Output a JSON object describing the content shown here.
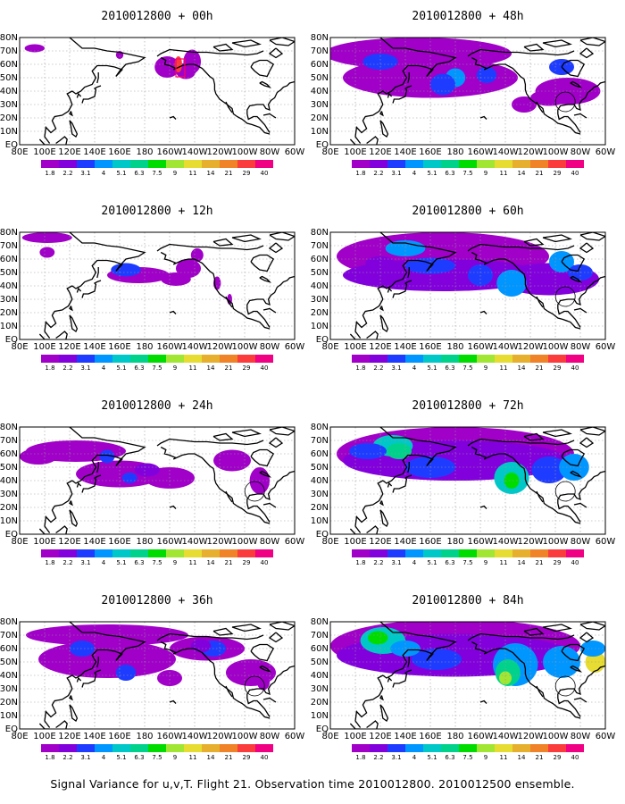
{
  "caption": "Signal Variance for u,v,T. Flight 21. Observation time 2010012800. 2010012500 ensemble.",
  "lon_ticks": [
    "80E",
    "100E",
    "120E",
    "140E",
    "160E",
    "180",
    "160W",
    "140W",
    "120W",
    "100W",
    "80W",
    "60W"
  ],
  "lat_ticks": [
    "EQ",
    "10N",
    "20N",
    "30N",
    "40N",
    "50N",
    "60N",
    "70N",
    "80N"
  ],
  "colorbar": {
    "labels": [
      "1.8",
      "2.2",
      "3.1",
      "4",
      "5.1",
      "6.3",
      "7.5",
      "9",
      "11",
      "14",
      "21",
      "29",
      "40"
    ],
    "colors": [
      "#a000c8",
      "#8200dc",
      "#1e3cff",
      "#0096ff",
      "#00c8c8",
      "#00d28c",
      "#00dc00",
      "#a0e632",
      "#e6dc32",
      "#e6af2d",
      "#f08228",
      "#fa3c3c",
      "#f00082"
    ]
  },
  "panels": [
    {
      "title": "2010012800 + 00h",
      "level": 0
    },
    {
      "title": "2010012800 + 48h",
      "level": 4
    },
    {
      "title": "2010012800 + 12h",
      "level": 1
    },
    {
      "title": "2010012800 + 60h",
      "level": 5
    },
    {
      "title": "2010012800 + 24h",
      "level": 2
    },
    {
      "title": "2010012800 + 72h",
      "level": 6
    },
    {
      "title": "2010012800 + 36h",
      "level": 3
    },
    {
      "title": "2010012800 + 84h",
      "level": 7
    }
  ]
}
